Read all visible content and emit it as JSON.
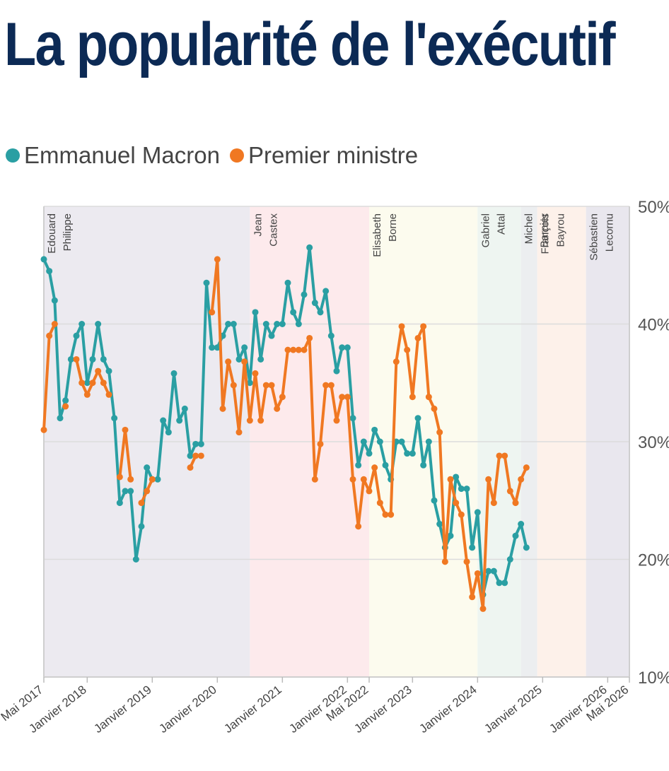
{
  "title": "La popularité de l'exécutif",
  "legend": [
    {
      "name": "Emmanuel Macron",
      "color": "#2a9fa3"
    },
    {
      "name": "Premier ministre",
      "color": "#f07822"
    }
  ],
  "chart_data": {
    "type": "line",
    "ylim": [
      10,
      50
    ],
    "y_ticks": [
      "10%",
      "20%",
      "30%",
      "40%",
      "50%"
    ],
    "y_tick_values": [
      10,
      20,
      30,
      40,
      50
    ],
    "xlim": [
      "2017-05",
      "2026-05"
    ],
    "x_ticks": [
      {
        "label": "Mai 2017",
        "date": "2017-05"
      },
      {
        "label": "Janvier 2018",
        "date": "2018-01"
      },
      {
        "label": "Janvier 2019",
        "date": "2019-01"
      },
      {
        "label": "Janvier 2020",
        "date": "2020-01"
      },
      {
        "label": "Janvier 2021",
        "date": "2021-01"
      },
      {
        "label": "Janvier 2022",
        "date": "2022-01"
      },
      {
        "label": "Mai 2022",
        "date": "2022-05"
      },
      {
        "label": "Janvier 2023",
        "date": "2023-01"
      },
      {
        "label": "Janvier 2024",
        "date": "2024-01"
      },
      {
        "label": "Janvier 2025",
        "date": "2025-01"
      },
      {
        "label": "Janvier 2026",
        "date": "2026-01"
      },
      {
        "label": "Mai 2026",
        "date": "2026-05"
      }
    ],
    "bands": [
      {
        "label": "Edouard Philippe",
        "start": "2017-05",
        "end": "2020-07",
        "color": "#eceaf0"
      },
      {
        "label": "Jean Castex",
        "start": "2020-07",
        "end": "2022-05",
        "color": "#fdeaec"
      },
      {
        "label": "Elisabeth Borne",
        "start": "2022-05",
        "end": "2024-01",
        "color": "#fcfbee"
      },
      {
        "label": "Gabriel Attal",
        "start": "2024-01",
        "end": "2024-09",
        "color": "#eef5f1"
      },
      {
        "label": "Michel Barnier",
        "start": "2024-09",
        "end": "2024-12",
        "color": "#eceef0"
      },
      {
        "label": "François Bayrou",
        "start": "2024-12",
        "end": "2025-09",
        "color": "#fdf1ea"
      },
      {
        "label": "Sébastien Lecornu",
        "start": "2025-09",
        "end": "2026-05",
        "color": "#e9e7ee"
      }
    ],
    "band_label_lines": [
      [
        "Edouard",
        "Philippe"
      ],
      [
        "Jean",
        "Castex"
      ],
      [
        "Elisabeth",
        "Borne"
      ],
      [
        "Gabriel",
        "Attal"
      ],
      [
        "Michel",
        "Barnier"
      ],
      [
        "François",
        "Bayrou"
      ],
      [
        "Sébastien",
        "Lecornu"
      ]
    ],
    "series": [
      {
        "name": "Emmanuel Macron",
        "color": "#2a9fa3",
        "values": [
          [
            "2017-05",
            45.5
          ],
          [
            "2017-06",
            44.5
          ],
          [
            "2017-07",
            42
          ],
          [
            "2017-08",
            32
          ],
          [
            "2017-09",
            33.5
          ],
          [
            "2017-10",
            37
          ],
          [
            "2017-11",
            39
          ],
          [
            "2017-12",
            40
          ],
          [
            "2018-01",
            35
          ],
          [
            "2018-02",
            37
          ],
          [
            "2018-03",
            40
          ],
          [
            "2018-04",
            37
          ],
          [
            "2018-05",
            36
          ],
          [
            "2018-06",
            32
          ],
          [
            "2018-07",
            24.8
          ],
          [
            "2018-08",
            25.8
          ],
          [
            "2018-09",
            25.8
          ],
          [
            "2018-10",
            20
          ],
          [
            "2018-11",
            22.8
          ],
          [
            "2018-12",
            27.8
          ],
          [
            "2019-01",
            26.8
          ],
          [
            "2019-02",
            26.8
          ],
          [
            "2019-03",
            31.8
          ],
          [
            "2019-04",
            30.8
          ],
          [
            "2019-05",
            35.8
          ],
          [
            "2019-06",
            31.8
          ],
          [
            "2019-07",
            32.8
          ],
          [
            "2019-08",
            28.8
          ],
          [
            "2019-09",
            29.8
          ],
          [
            "2019-10",
            29.8
          ],
          [
            "2019-11",
            43.5
          ],
          [
            "2019-12",
            38
          ],
          [
            "2020-01",
            38
          ],
          [
            "2020-02",
            39
          ],
          [
            "2020-03",
            40
          ],
          [
            "2020-04",
            40
          ],
          [
            "2020-05",
            37
          ],
          [
            "2020-06",
            38
          ],
          [
            "2020-07",
            35
          ],
          [
            "2020-08",
            41
          ],
          [
            "2020-09",
            37
          ],
          [
            "2020-10",
            40
          ],
          [
            "2020-11",
            39
          ],
          [
            "2020-12",
            40
          ],
          [
            "2021-01",
            40
          ],
          [
            "2021-02",
            43.5
          ],
          [
            "2021-03",
            41
          ],
          [
            "2021-04",
            40
          ],
          [
            "2021-05",
            42.5
          ],
          [
            "2021-06",
            46.5
          ],
          [
            "2021-07",
            41.8
          ],
          [
            "2021-08",
            41
          ],
          [
            "2021-09",
            42.8
          ],
          [
            "2021-10",
            39
          ],
          [
            "2021-11",
            36
          ],
          [
            "2021-12",
            38
          ],
          [
            "2022-01",
            38
          ],
          [
            "2022-02",
            32
          ],
          [
            "2022-03",
            28
          ],
          [
            "2022-04",
            30
          ],
          [
            "2022-05",
            29
          ],
          [
            "2022-06",
            31
          ],
          [
            "2022-07",
            30
          ],
          [
            "2022-08",
            28
          ],
          [
            "2022-09",
            26.8
          ],
          [
            "2022-10",
            30
          ],
          [
            "2022-11",
            30
          ],
          [
            "2022-12",
            29
          ],
          [
            "2023-01",
            29
          ],
          [
            "2023-02",
            32
          ],
          [
            "2023-03",
            28
          ],
          [
            "2023-04",
            30
          ],
          [
            "2023-05",
            25
          ],
          [
            "2023-06",
            23
          ],
          [
            "2023-07",
            21
          ],
          [
            "2023-08",
            22
          ],
          [
            "2023-09",
            27
          ],
          [
            "2023-10",
            26
          ],
          [
            "2023-11",
            26
          ],
          [
            "2023-12",
            21
          ],
          [
            "2024-01",
            24
          ],
          [
            "2024-02",
            17
          ],
          [
            "2024-03",
            19
          ],
          [
            "2024-04",
            19
          ],
          [
            "2024-05",
            18
          ],
          [
            "2024-06",
            18
          ],
          [
            "2024-07",
            20
          ],
          [
            "2024-08",
            22
          ],
          [
            "2024-09",
            23
          ],
          [
            "2024-10",
            21
          ]
        ]
      },
      {
        "name": "Premier ministre",
        "color": "#f07822",
        "values": [
          [
            "2017-05",
            31
          ],
          [
            "2017-06",
            39
          ],
          [
            "2017-07",
            40
          ],
          [
            "2017-08",
            null
          ],
          [
            "2017-09",
            33
          ],
          [
            "2017-10",
            null
          ],
          [
            "2017-11",
            37
          ],
          [
            "2017-12",
            35
          ],
          [
            "2018-01",
            34
          ],
          [
            "2018-02",
            35
          ],
          [
            "2018-03",
            36
          ],
          [
            "2018-04",
            35
          ],
          [
            "2018-05",
            34
          ],
          [
            "2018-06",
            null
          ],
          [
            "2018-07",
            27
          ],
          [
            "2018-08",
            31
          ],
          [
            "2018-09",
            26.8
          ],
          [
            "2018-10",
            null
          ],
          [
            "2018-11",
            24.8
          ],
          [
            "2018-12",
            25.8
          ],
          [
            "2019-01",
            26.8
          ],
          [
            "2019-02",
            null
          ],
          [
            "2019-03",
            null
          ],
          [
            "2019-04",
            null
          ],
          [
            "2019-05",
            null
          ],
          [
            "2019-06",
            null
          ],
          [
            "2019-07",
            null
          ],
          [
            "2019-08",
            27.8
          ],
          [
            "2019-09",
            28.8
          ],
          [
            "2019-10",
            28.8
          ],
          [
            "2019-11",
            null
          ],
          [
            "2019-12",
            41
          ],
          [
            "2020-01",
            45.5
          ],
          [
            "2020-02",
            32.8
          ],
          [
            "2020-03",
            36.8
          ],
          [
            "2020-04",
            34.8
          ],
          [
            "2020-05",
            30.8
          ],
          [
            "2020-06",
            36.8
          ],
          [
            "2020-07",
            31.8
          ],
          [
            "2020-08",
            35.8
          ],
          [
            "2020-09",
            31.8
          ],
          [
            "2020-10",
            34.8
          ],
          [
            "2020-11",
            34.8
          ],
          [
            "2020-12",
            32.8
          ],
          [
            "2021-01",
            33.8
          ],
          [
            "2021-02",
            37.8
          ],
          [
            "2021-03",
            37.8
          ],
          [
            "2021-04",
            37.8
          ],
          [
            "2021-05",
            37.8
          ],
          [
            "2021-06",
            38.8
          ],
          [
            "2021-07",
            26.8
          ],
          [
            "2021-08",
            29.8
          ],
          [
            "2021-09",
            34.8
          ],
          [
            "2021-10",
            34.8
          ],
          [
            "2021-11",
            31.8
          ],
          [
            "2021-12",
            33.8
          ],
          [
            "2022-01",
            33.8
          ],
          [
            "2022-02",
            26.8
          ],
          [
            "2022-03",
            22.8
          ],
          [
            "2022-04",
            26.8
          ],
          [
            "2022-05",
            25.8
          ],
          [
            "2022-06",
            27.8
          ],
          [
            "2022-07",
            24.8
          ],
          [
            "2022-08",
            23.8
          ],
          [
            "2022-09",
            23.8
          ],
          [
            "2022-10",
            36.8
          ],
          [
            "2022-11",
            39.8
          ],
          [
            "2022-12",
            37.8
          ],
          [
            "2023-01",
            33.8
          ],
          [
            "2023-02",
            38.8
          ],
          [
            "2023-03",
            39.8
          ],
          [
            "2023-04",
            33.8
          ],
          [
            "2023-05",
            32.8
          ],
          [
            "2023-06",
            30.8
          ],
          [
            "2023-07",
            19.8
          ],
          [
            "2023-08",
            26.8
          ],
          [
            "2023-09",
            24.8
          ],
          [
            "2023-10",
            23.8
          ],
          [
            "2023-11",
            19.8
          ],
          [
            "2023-12",
            16.8
          ],
          [
            "2024-01",
            18.8
          ],
          [
            "2024-02",
            15.8
          ],
          [
            "2024-03",
            26.8
          ],
          [
            "2024-04",
            24.8
          ],
          [
            "2024-05",
            28.8
          ],
          [
            "2024-06",
            28.8
          ],
          [
            "2024-07",
            25.8
          ],
          [
            "2024-08",
            24.8
          ],
          [
            "2024-09",
            26.8
          ],
          [
            "2024-10",
            27.8
          ]
        ]
      }
    ]
  }
}
